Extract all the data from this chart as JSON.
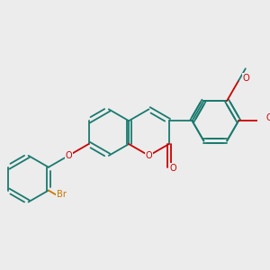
{
  "background_color": "#ececec",
  "bond_color": "#1a7a6e",
  "oxygen_color": "#cc0000",
  "bromine_color": "#cc7700",
  "figsize": [
    3.0,
    3.0
  ],
  "dpi": 100,
  "xlim": [
    0,
    10
  ],
  "ylim": [
    0,
    10
  ]
}
